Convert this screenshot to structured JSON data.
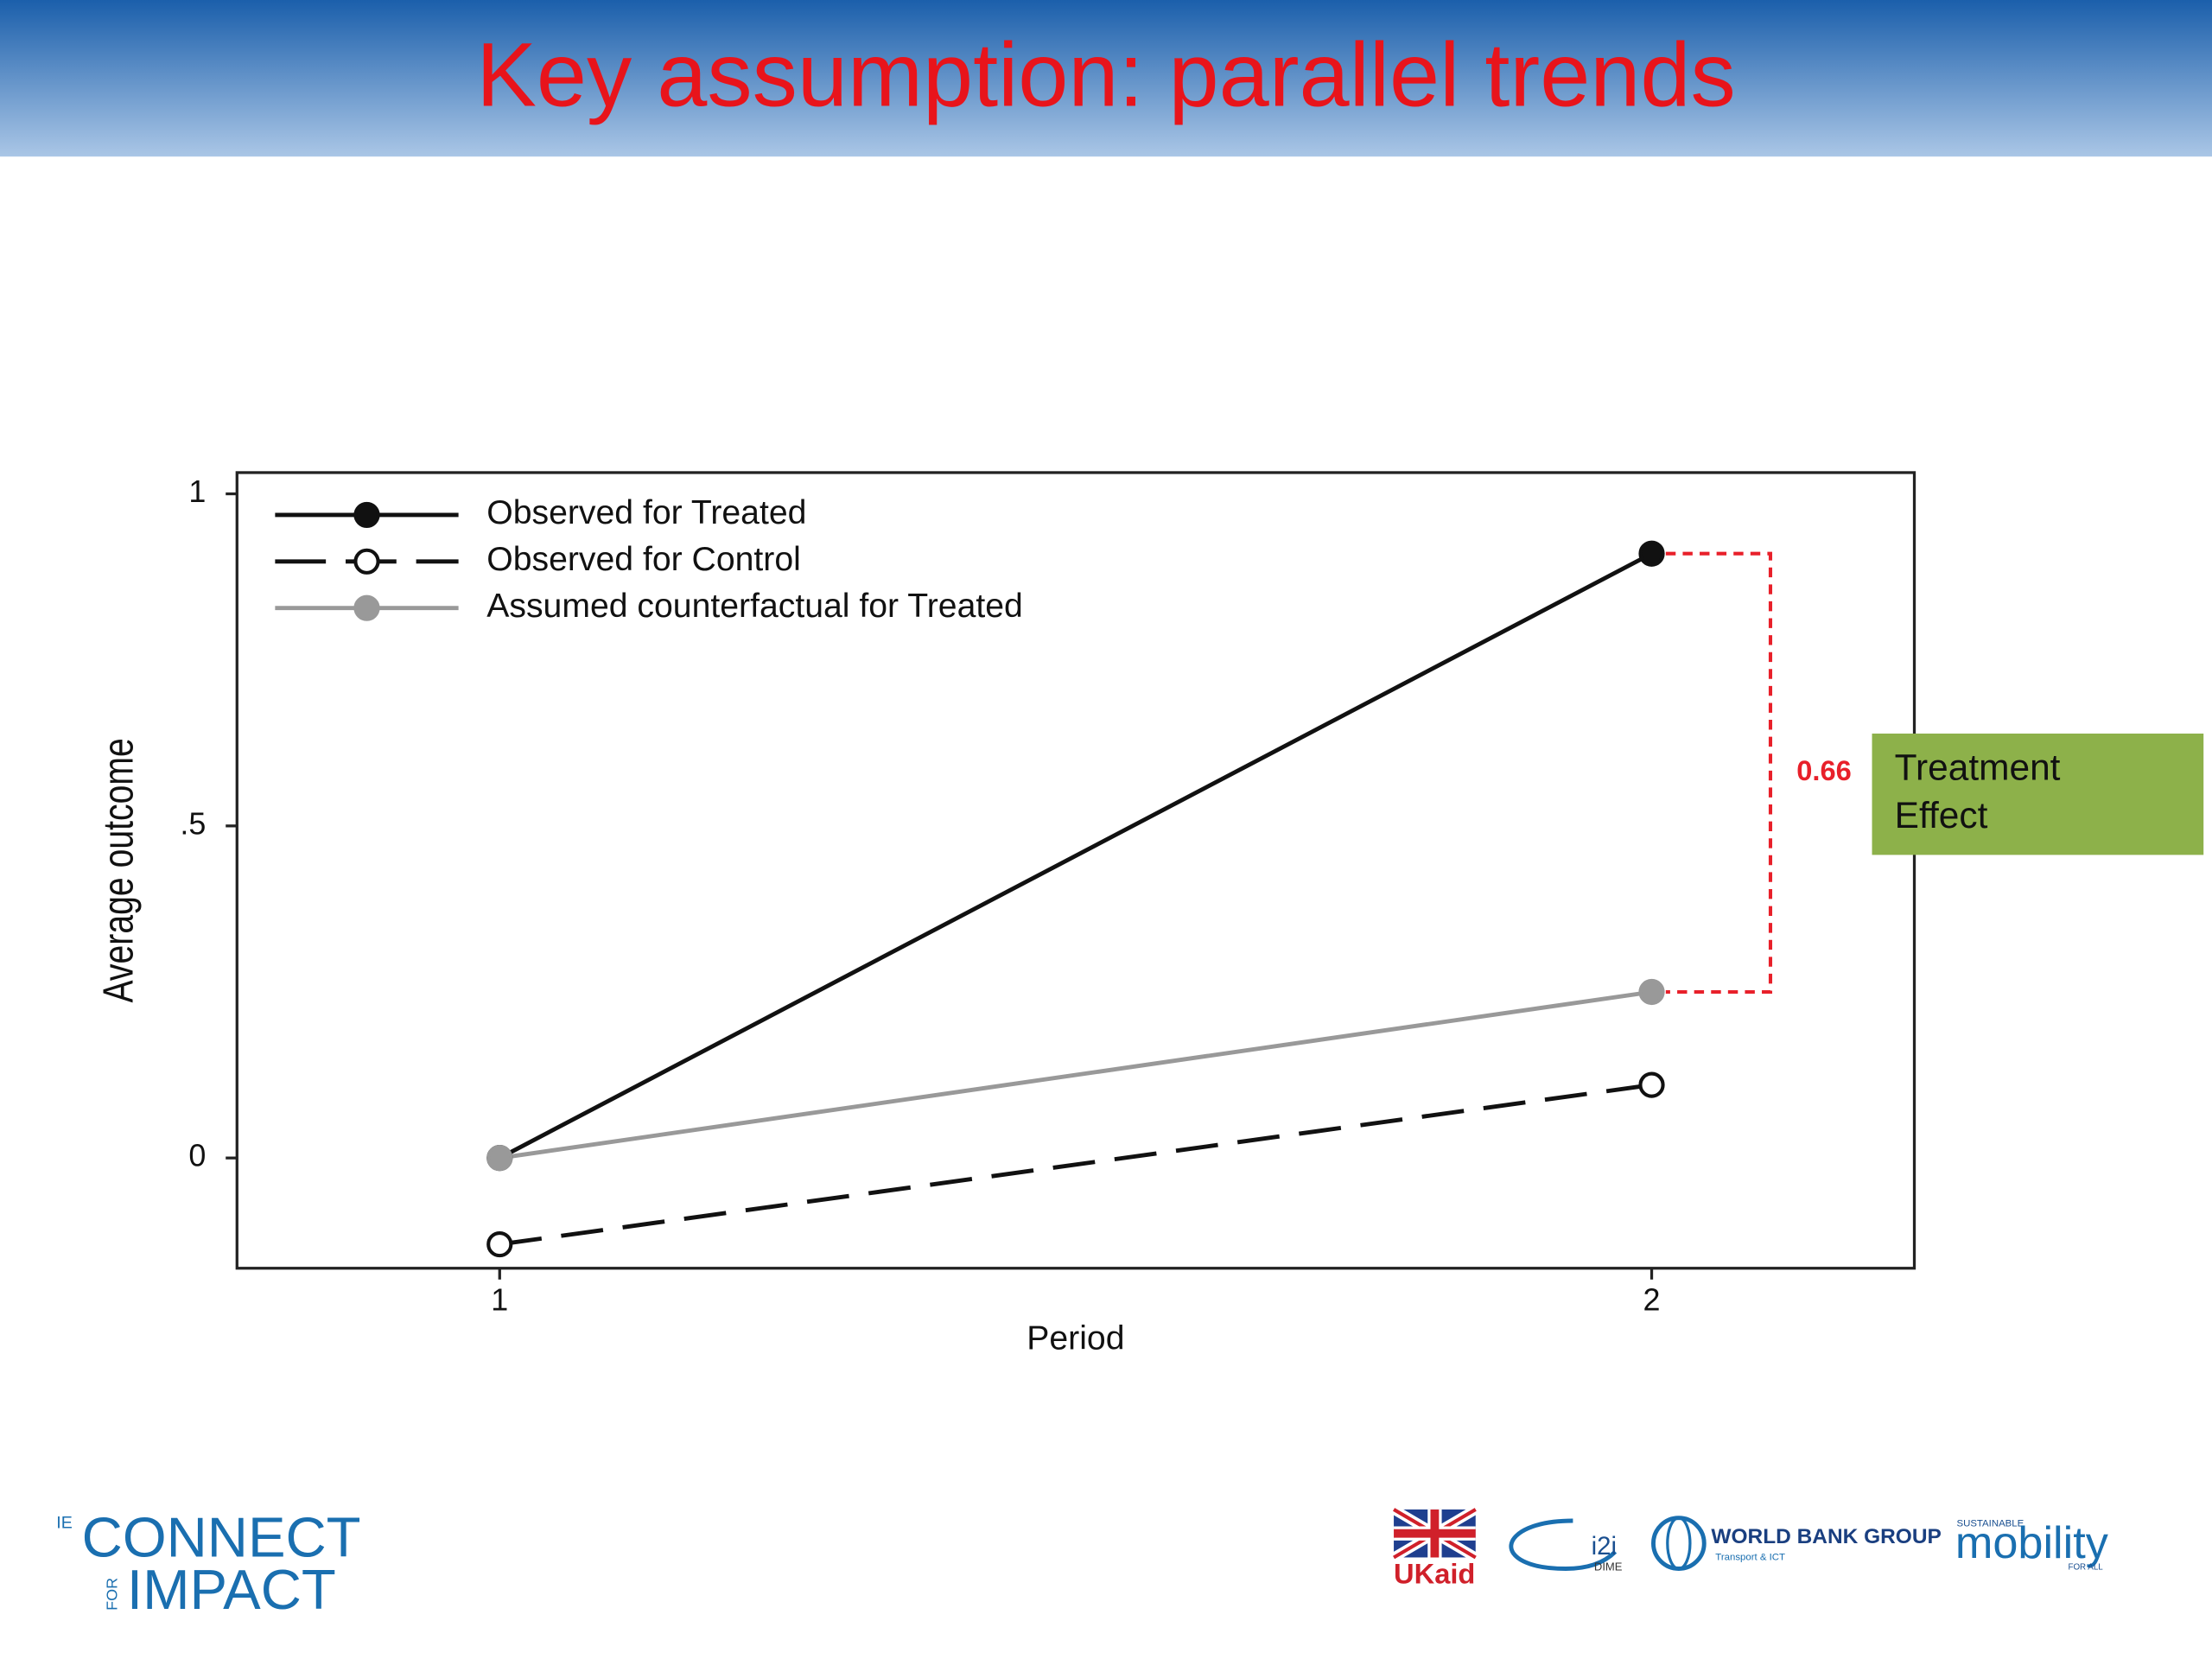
{
  "header": {
    "title": "Key assumption: parallel trends"
  },
  "chart_data": {
    "type": "line",
    "xlabel": "Period",
    "ylabel": "Average outcome",
    "x": [
      1,
      2
    ],
    "xlim": [
      0.772,
      2.228
    ],
    "ylim": [
      -0.166,
      1.032
    ],
    "xticks": [
      1,
      2
    ],
    "yticks": [
      0,
      {
        "value": 0.5,
        "label": ".5"
      },
      1
    ],
    "series": [
      {
        "name": "Observed for Treated",
        "color": "#111111",
        "line_style": "solid",
        "marker_fill": "#111111",
        "values": [
          0,
          0.91
        ]
      },
      {
        "name": "Observed for Control",
        "color": "#111111",
        "line_style": "dashed",
        "marker_fill": "#ffffff",
        "values": [
          -0.13,
          0.11
        ]
      },
      {
        "name": "Assumed counterfactual for Treated",
        "color": "#999999",
        "line_style": "solid",
        "marker_fill": "#999999",
        "values": [
          0,
          0.25
        ]
      }
    ],
    "annotation": {
      "label": "0.66",
      "color": "#e8202a"
    },
    "callout": {
      "lines": [
        "Treatment",
        "Effect"
      ],
      "color": "#8db14a"
    }
  },
  "footer": {
    "left": {
      "prefix": "IE",
      "top": "CONNECT",
      "middle": "FOR",
      "bottom": "IMPACT"
    },
    "right": [
      "UKaid",
      "i2i",
      "DIME",
      "WORLD BANK GROUP",
      "Transport & ICT",
      "SUSTAINABLE",
      "mobility",
      "FOR ALL"
    ]
  }
}
